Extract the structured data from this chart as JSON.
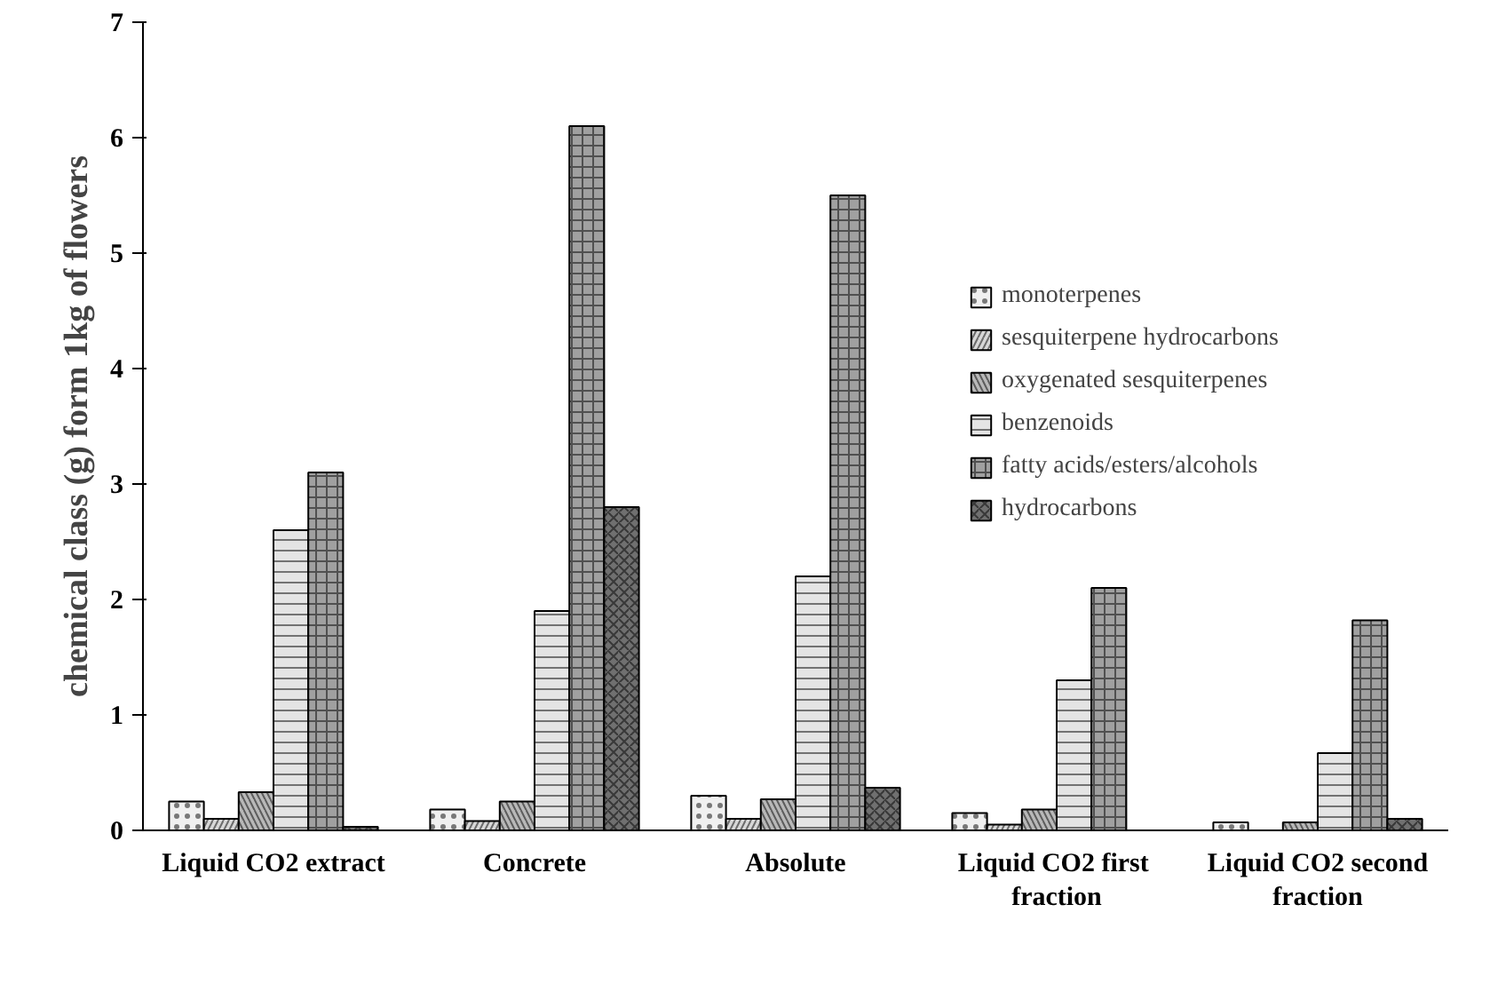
{
  "chart_data": {
    "type": "bar",
    "ylabel": "chemical class (g) form 1kg of flowers",
    "categories": [
      "Liquid CO2 extract",
      "Concrete",
      "Absolute",
      "Liquid CO2  first fraction",
      "Liquid CO2 second fraction"
    ],
    "series": [
      {
        "name": "monoterpenes",
        "color": "#f0f0f0",
        "values": [
          0.25,
          0.18,
          0.3,
          0.15,
          0.07
        ]
      },
      {
        "name": "sesquiterpene hydrocarbons",
        "color": "#d8d8d8",
        "values": [
          0.1,
          0.08,
          0.1,
          0.05,
          null
        ]
      },
      {
        "name": "oxygenated sesquiterpenes",
        "color": "#b8b8b8",
        "values": [
          0.33,
          0.25,
          0.27,
          0.18,
          0.07
        ]
      },
      {
        "name": "benzenoids",
        "color": "#e4e4e4",
        "values": [
          2.6,
          1.9,
          2.2,
          1.3,
          0.67
        ]
      },
      {
        "name": "fatty acids/esters/alcohols",
        "color": "#a0a0a0",
        "values": [
          3.1,
          6.1,
          5.5,
          2.1,
          1.82
        ]
      },
      {
        "name": "hydrocarbons",
        "color": "#707070",
        "values": [
          0.03,
          2.8,
          0.37,
          null,
          0.1
        ]
      }
    ],
    "ylim": [
      0,
      7
    ],
    "yticks": [
      0,
      1,
      2,
      3,
      4,
      5,
      6,
      7
    ],
    "grid": false,
    "legend": "right"
  }
}
